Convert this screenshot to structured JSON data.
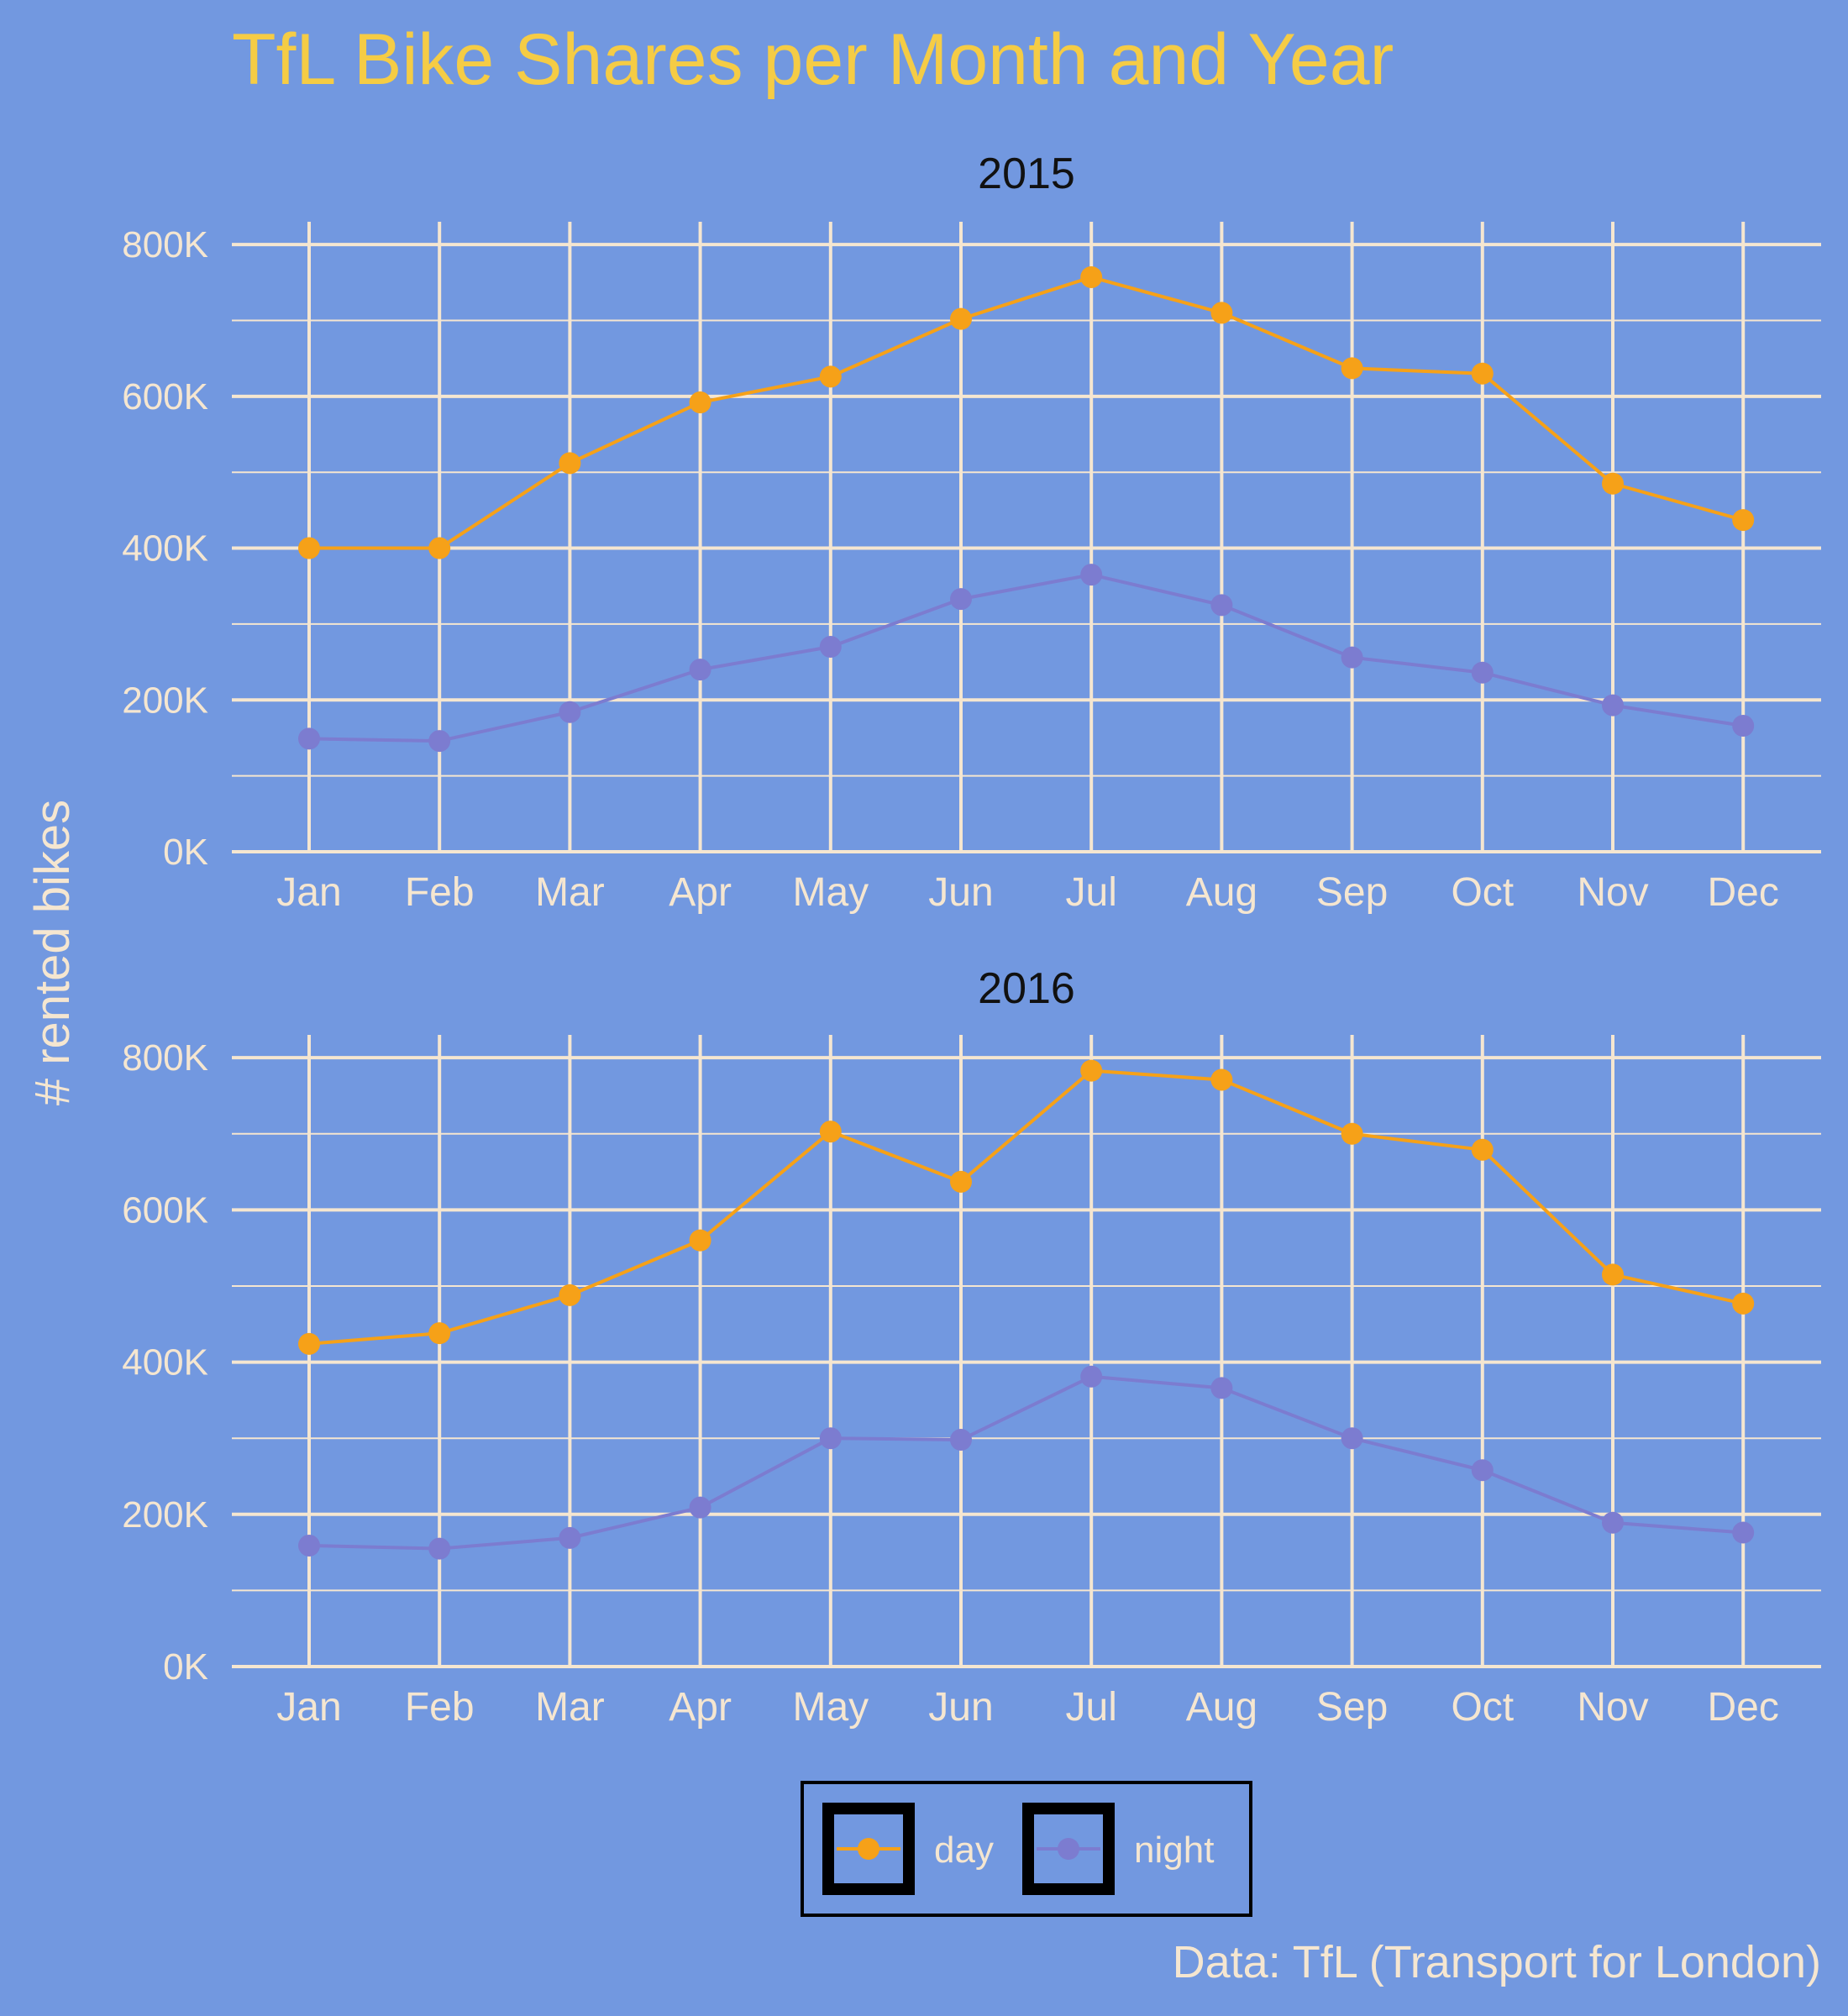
{
  "chart_data": {
    "type": "line",
    "title": "TfL Bike Shares per Month and Year",
    "ylabel": "# rented bikes",
    "caption": "Data: TfL (Transport for London)",
    "categories": [
      "Jan",
      "Feb",
      "Mar",
      "Apr",
      "May",
      "Jun",
      "Jul",
      "Aug",
      "Sep",
      "Oct",
      "Nov",
      "Dec"
    ],
    "ylim": [
      0,
      830000
    ],
    "yticks": [
      0,
      200000,
      400000,
      600000,
      800000
    ],
    "ytick_labels": [
      "0K",
      "200K",
      "400K",
      "600K",
      "800K"
    ],
    "legend_position": "bottom",
    "grid": true,
    "colors": {
      "background": "#7298e0",
      "grid": "#f5e6d0",
      "day": "#f6a118",
      "night": "#7c7cd0",
      "title": "#f5cc45",
      "text": "#f5e6d0",
      "panel_title": "#111111"
    },
    "panels": [
      {
        "title": "2015",
        "series": [
          {
            "name": "day",
            "values": [
              400000,
              400000,
              512000,
              592000,
              626000,
              702000,
              757000,
              710000,
              637000,
              630000,
              485000,
              437000
            ]
          },
          {
            "name": "night",
            "values": [
              149000,
              146000,
              184000,
              240000,
              270000,
              333000,
              365000,
              325000,
              256000,
              236000,
              193000,
              166000
            ]
          }
        ]
      },
      {
        "title": "2016",
        "series": [
          {
            "name": "day",
            "values": [
              424000,
              438000,
              488000,
              560000,
              703000,
              637000,
              783000,
              771000,
              700000,
              679000,
              515000,
              477000
            ]
          },
          {
            "name": "night",
            "values": [
              159000,
              155000,
              169000,
              209000,
              300000,
              298000,
              381000,
              366000,
              300000,
              258000,
              189000,
              176000
            ]
          }
        ]
      }
    ]
  }
}
